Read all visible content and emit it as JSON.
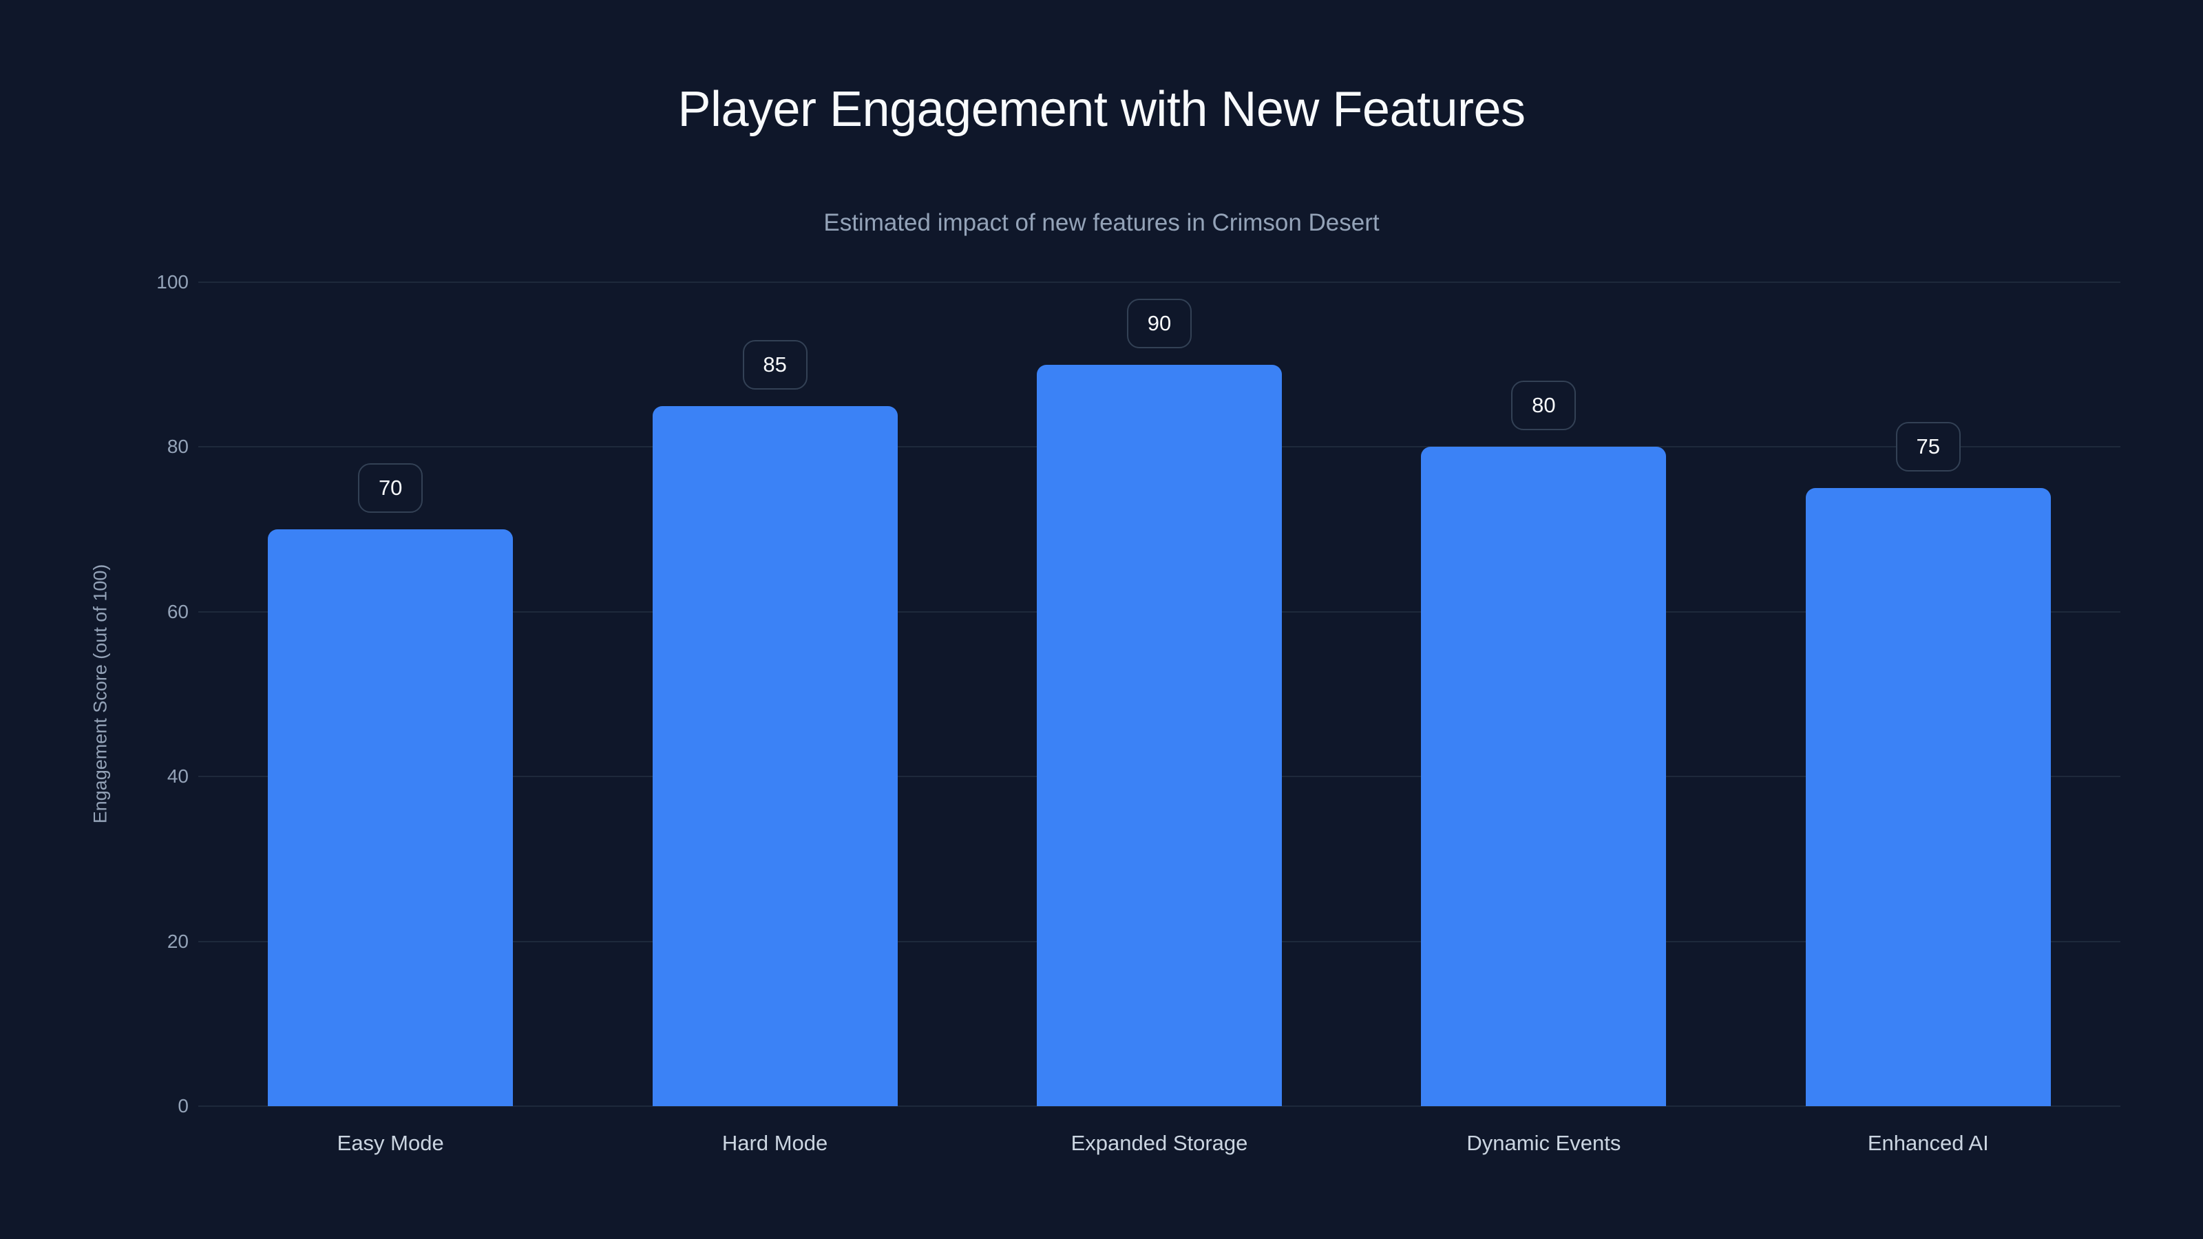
{
  "title": "Player Engagement with New Features",
  "subtitle": "Estimated impact of new features in Crimson Desert",
  "colors": {
    "background": "#0f172a",
    "bar": "#3b82f6",
    "grid": "#1e293b",
    "badge_border": "#334155",
    "text_primary": "#f8fafc",
    "text_muted": "#94a3b8",
    "text_label": "#cbd5e1"
  },
  "chart_data": {
    "type": "bar",
    "title": "Player Engagement with New Features",
    "subtitle": "Estimated impact of new features in Crimson Desert",
    "xlabel": "",
    "ylabel": "Engagement Score (out of 100)",
    "categories": [
      "Easy Mode",
      "Hard Mode",
      "Expanded Storage",
      "Dynamic Events",
      "Enhanced AI"
    ],
    "values": [
      70,
      85,
      90,
      80,
      75
    ],
    "value_labels": [
      "70",
      "85",
      "90",
      "80",
      "75"
    ],
    "ylim": [
      0,
      100
    ],
    "yticks": [
      0,
      20,
      40,
      60,
      80,
      100
    ],
    "ytick_labels": [
      "0",
      "20",
      "40",
      "60",
      "80",
      "100"
    ],
    "grid": true,
    "legend": "none"
  }
}
